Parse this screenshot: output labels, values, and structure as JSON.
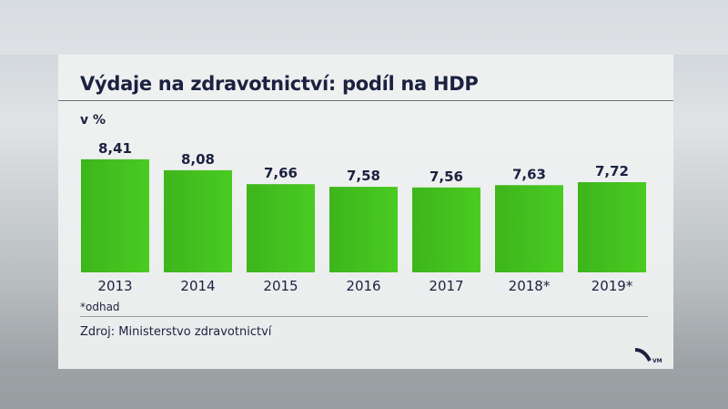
{
  "chart_data": {
    "type": "bar",
    "title": "Výdaje na zdravotnictví: podíl na HDP",
    "ylabel": "v %",
    "categories": [
      "2013",
      "2014",
      "2015",
      "2016",
      "2017",
      "2018*",
      "2019*"
    ],
    "values": [
      8.41,
      8.08,
      7.66,
      7.58,
      7.56,
      7.63,
      7.72
    ],
    "value_labels": [
      "8,41",
      "8,08",
      "7,66",
      "7,58",
      "7,56",
      "7,63",
      "7,72"
    ],
    "ylim": [
      5,
      8.9
    ],
    "grid": false,
    "bar_color": "#3dbf1a"
  },
  "footnote": "*odhad",
  "source": "Zdroj: Ministerstvo zdravotnictví",
  "logo": "VM"
}
